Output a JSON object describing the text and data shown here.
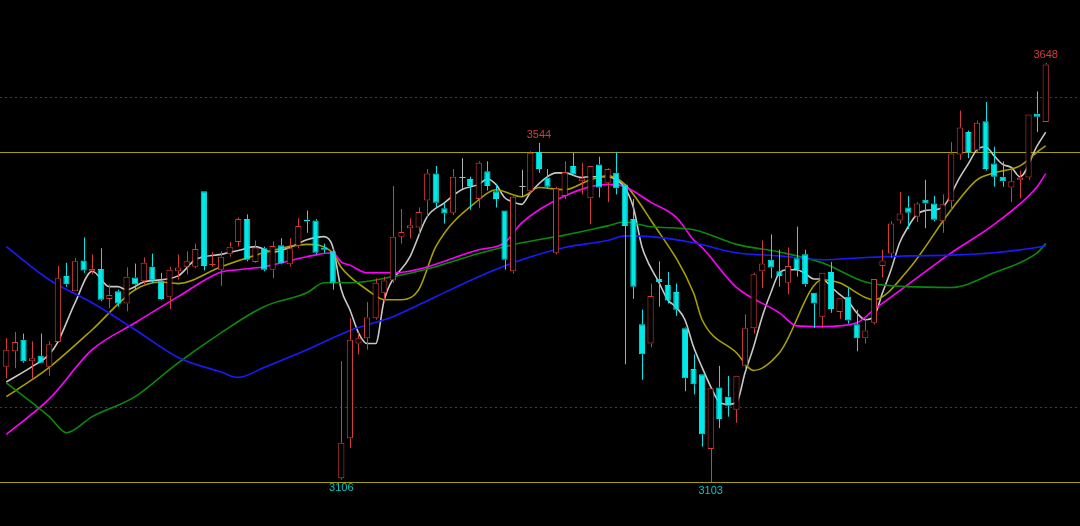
{
  "chart_data": {
    "type": "candlestick",
    "tick_labels": false,
    "grid": false,
    "legend": false,
    "categories": [
      null,
      null,
      null,
      null,
      null,
      null,
      null,
      null,
      null,
      null,
      null,
      null,
      null,
      null,
      null,
      null,
      null,
      null,
      null,
      null,
      null,
      null,
      null,
      null,
      null,
      null,
      null,
      null,
      null,
      null,
      null,
      null,
      null,
      null,
      null,
      null,
      null,
      null,
      null,
      null,
      null,
      null,
      null,
      null,
      null,
      null,
      null,
      null,
      null,
      null,
      null,
      null,
      null,
      null,
      null,
      null,
      null,
      null,
      null,
      null,
      null,
      null,
      null,
      null,
      null,
      null,
      null,
      null,
      null,
      null,
      null,
      null,
      null,
      null,
      null,
      null,
      null,
      null,
      null,
      null,
      null,
      null,
      null,
      null,
      null,
      null,
      null,
      null,
      null,
      null,
      null,
      null,
      null,
      null,
      null,
      null,
      null,
      null,
      null,
      null,
      null,
      null,
      null,
      null,
      null,
      null,
      null,
      null,
      null,
      null,
      null,
      null,
      null,
      null,
      null,
      null,
      null,
      null,
      null,
      null,
      null,
      null
    ],
    "ohlc": [
      [
        3253,
        3290,
        3238,
        3275
      ],
      [
        3273,
        3298,
        3251,
        3285
      ],
      [
        3288,
        3296,
        3258,
        3260
      ],
      [
        3260,
        3286,
        3236,
        3264
      ],
      [
        3267,
        3296,
        3258,
        3258
      ],
      [
        3253,
        3286,
        3241,
        3282
      ],
      [
        3285,
        3384,
        3284,
        3368
      ],
      [
        3371,
        3388,
        3357,
        3360
      ],
      [
        3351,
        3394,
        3351,
        3390
      ],
      [
        3391,
        3421,
        3375,
        3378
      ],
      [
        3377,
        3399,
        3373,
        3380
      ],
      [
        3380,
        3407,
        3338,
        3340
      ],
      [
        3341,
        3360,
        3329,
        3346
      ],
      [
        3351,
        3353,
        3331,
        3335
      ],
      [
        3335,
        3382,
        3325,
        3370
      ],
      [
        3369,
        3387,
        3353,
        3360
      ],
      [
        3364,
        3395,
        3360,
        3388
      ],
      [
        3383,
        3400,
        3362,
        3365
      ],
      [
        3364,
        3375,
        3340,
        3341
      ],
      [
        3344,
        3383,
        3328,
        3379
      ],
      [
        3377,
        3399,
        3366,
        3382
      ],
      [
        3383,
        3403,
        3373,
        3390
      ],
      [
        3383,
        3413,
        3381,
        3406
      ],
      [
        3481,
        3481,
        3378,
        3384
      ],
      [
        3386,
        3402,
        3383,
        3386
      ],
      [
        3379,
        3403,
        3358,
        3396
      ],
      [
        3399,
        3415,
        3396,
        3409
      ],
      [
        3415,
        3447,
        3409,
        3445
      ],
      [
        3445,
        3451,
        3390,
        3392
      ],
      [
        3389,
        3417,
        3388,
        3408
      ],
      [
        3407,
        3409,
        3377,
        3379
      ],
      [
        3379,
        3416,
        3368,
        3410
      ],
      [
        3411,
        3420,
        3386,
        3387
      ],
      [
        3386,
        3420,
        3383,
        3407
      ],
      [
        3410,
        3446,
        3407,
        3436
      ],
      [
        3444,
        3456,
        3427,
        3442
      ],
      [
        3443,
        3445,
        3399,
        3401
      ],
      [
        3408,
        3413,
        3401,
        3405
      ],
      [
        3403,
        3407,
        3353,
        3362
      ],
      [
        3108,
        3260,
        3106,
        3154
      ],
      [
        3160,
        3316,
        3147,
        3288
      ],
      [
        3283,
        3297,
        3269,
        3290
      ],
      [
        3290,
        3337,
        3275,
        3317
      ],
      [
        3316,
        3368,
        3314,
        3362
      ],
      [
        3349,
        3370,
        3338,
        3365
      ],
      [
        3365,
        3488,
        3362,
        3422
      ],
      [
        3422,
        3458,
        3413,
        3428
      ],
      [
        3433,
        3446,
        3420,
        3437
      ],
      [
        3434,
        3460,
        3425,
        3454
      ],
      [
        3469,
        3510,
        3448,
        3504
      ],
      [
        3504,
        3514,
        3460,
        3466
      ],
      [
        3459,
        3466,
        3439,
        3452
      ],
      [
        3453,
        3510,
        3450,
        3500
      ],
      [
        3499,
        3524,
        3483,
        3499
      ],
      [
        3497,
        3500,
        3457,
        3488
      ],
      [
        3471,
        3520,
        3459,
        3518
      ],
      [
        3507,
        3520,
        3482,
        3488
      ],
      [
        3481,
        3490,
        3460,
        3471
      ],
      [
        3456,
        3456,
        3379,
        3392
      ],
      [
        3377,
        3477,
        3374,
        3474
      ],
      [
        3488,
        3509,
        3474,
        3488
      ],
      [
        3481,
        3533,
        3479,
        3531
      ],
      [
        3532,
        3544,
        3505,
        3510
      ],
      [
        3499,
        3510,
        3485,
        3487
      ],
      [
        3401,
        3487,
        3399,
        3485
      ],
      [
        3475,
        3520,
        3471,
        3506
      ],
      [
        3514,
        3531,
        3501,
        3503
      ],
      [
        3494,
        3518,
        3477,
        3498
      ],
      [
        3472,
        3514,
        3438,
        3514
      ],
      [
        3516,
        3526,
        3473,
        3486
      ],
      [
        3492,
        3511,
        3467,
        3510
      ],
      [
        3505,
        3532,
        3477,
        3485
      ],
      [
        3490,
        3490,
        3256,
        3436
      ],
      [
        3445,
        3471,
        3341,
        3357
      ],
      [
        3308,
        3327,
        3236,
        3269
      ],
      [
        3283,
        3361,
        3278,
        3345
      ],
      [
        3367,
        3390,
        3331,
        3363
      ],
      [
        3359,
        3376,
        3335,
        3339
      ],
      [
        3350,
        3361,
        3319,
        3327
      ],
      [
        3303,
        3304,
        3221,
        3238
      ],
      [
        3250,
        3269,
        3217,
        3230
      ],
      [
        3243,
        3243,
        3149,
        3165
      ],
      [
        3146,
        3225,
        3103,
        3225
      ],
      [
        3226,
        3254,
        3173,
        3185
      ],
      [
        3214,
        3241,
        3188,
        3202
      ],
      [
        3197,
        3241,
        3180,
        3241
      ],
      [
        3254,
        3321,
        3249,
        3303
      ],
      [
        3303,
        3375,
        3296,
        3373
      ],
      [
        3377,
        3417,
        3355,
        3387
      ],
      [
        3392,
        3425,
        3368,
        3382
      ],
      [
        3377,
        3405,
        3357,
        3371
      ],
      [
        3362,
        3408,
        3347,
        3384
      ],
      [
        3394,
        3435,
        3370,
        3380
      ],
      [
        3399,
        3405,
        3357,
        3360
      ],
      [
        3349,
        3349,
        3303,
        3335
      ],
      [
        3318,
        3375,
        3303,
        3375
      ],
      [
        3376,
        3389,
        3323,
        3328
      ],
      [
        3324,
        3342,
        3315,
        3342
      ],
      [
        3344,
        3355,
        3309,
        3313
      ],
      [
        3308,
        3327,
        3273,
        3290
      ],
      [
        3290,
        3316,
        3283,
        3300
      ],
      [
        3310,
        3367,
        3308,
        3367
      ],
      [
        3384,
        3405,
        3369,
        3391
      ],
      [
        3400,
        3442,
        3394,
        3439
      ],
      [
        3443,
        3480,
        3439,
        3452
      ],
      [
        3460,
        3475,
        3432,
        3453
      ],
      [
        3448,
        3467,
        3441,
        3465
      ],
      [
        3470,
        3496,
        3433,
        3465
      ],
      [
        3465,
        3475,
        3442,
        3444
      ],
      [
        3442,
        3477,
        3427,
        3464
      ],
      [
        3468,
        3545,
        3456,
        3530
      ],
      [
        3529,
        3586,
        3522,
        3564
      ],
      [
        3558,
        3560,
        3524,
        3532
      ],
      [
        3534,
        3573,
        3532,
        3570
      ],
      [
        3572,
        3597,
        3508,
        3510
      ],
      [
        3517,
        3539,
        3487,
        3500
      ],
      [
        3500,
        3520,
        3487,
        3494
      ],
      [
        3486,
        3509,
        3467,
        3494
      ],
      [
        3496,
        3508,
        3472,
        3499
      ],
      [
        3499,
        3581,
        3496,
        3581
      ],
      [
        3582,
        3611,
        3558,
        3578
      ],
      [
        3571,
        3648,
        3571,
        3646
      ]
    ],
    "colors": [
      "#d23c3c",
      "#d23c3c",
      "#00e8e8",
      "#d23c3c",
      "#00e8e8",
      "#d23c3c",
      "#d23c3c",
      "#00e8e8",
      "#d23c3c",
      "#00e8e8",
      "#d23c3c",
      "#00e8e8",
      "#d23c3c",
      "#00e8e8",
      "#d23c3c",
      "#00e8e8",
      "#d23c3c",
      "#00e8e8",
      "#00e8e8",
      "#d23c3c",
      "#d23c3c",
      "#d23c3c",
      "#d23c3c",
      "#00e8e8",
      "#d23c3c",
      "#d23c3c",
      "#d23c3c",
      "#d23c3c",
      "#00e8e8",
      "#d23c3c",
      "#00e8e8",
      "#d23c3c",
      "#00e8e8",
      "#d23c3c",
      "#d23c3c",
      "#00e8e8",
      "#00e8e8",
      "#00e8e8",
      "#00e8e8",
      "#d23c3c",
      "#d23c3c",
      "#d23c3c",
      "#d23c3c",
      "#d23c3c",
      "#d23c3c",
      "#d23c3c",
      "#d23c3c",
      "#d23c3c",
      "#d23c3c",
      "#d23c3c",
      "#00e8e8",
      "#00e8e8",
      "#d23c3c",
      "#b4b4b4",
      "#00e8e8",
      "#d23c3c",
      "#00e8e8",
      "#00e8e8",
      "#00e8e8",
      "#d23c3c",
      "#b4b4b4",
      "#d23c3c",
      "#00e8e8",
      "#00e8e8",
      "#d23c3c",
      "#d23c3c",
      "#00e8e8",
      "#d23c3c",
      "#d23c3c",
      "#00e8e8",
      "#d23c3c",
      "#00e8e8",
      "#00e8e8",
      "#00e8e8",
      "#00e8e8",
      "#d23c3c",
      "#00e8e8",
      "#00e8e8",
      "#00e8e8",
      "#00e8e8",
      "#00e8e8",
      "#00e8e8",
      "#d23c3c",
      "#00e8e8",
      "#00e8e8",
      "#d23c3c",
      "#d23c3c",
      "#d23c3c",
      "#d23c3c",
      "#00e8e8",
      "#00e8e8",
      "#d23c3c",
      "#00e8e8",
      "#00e8e8",
      "#00e8e8",
      "#d23c3c",
      "#00e8e8",
      "#d23c3c",
      "#00e8e8",
      "#00e8e8",
      "#d23c3c",
      "#d23c3c",
      "#d23c3c",
      "#d23c3c",
      "#d23c3c",
      "#00e8e8",
      "#d23c3c",
      "#00e8e8",
      "#00e8e8",
      "#d23c3c",
      "#d23c3c",
      "#d23c3c",
      "#00e8e8",
      "#d23c3c",
      "#00e8e8",
      "#00e8e8",
      "#00e8e8",
      "#d23c3c",
      "#d23c3c",
      "#d23c3c",
      "#00e8e8",
      "#d23c3c"
    ],
    "series": [
      {
        "type": "line",
        "color": "#1a1aff",
        "values": [
          3409,
          null,
          null,
          null,
          null,
          3366,
          null,
          null,
          null,
          null,
          3336,
          null,
          null,
          null,
          null,
          3301,
          null,
          null,
          null,
          null,
          3265,
          null,
          null,
          null,
          null,
          3246,
          null,
          3239,
          null,
          null,
          3252,
          null,
          null,
          null,
          null,
          3275,
          null,
          null,
          null,
          null,
          3300,
          null,
          null,
          null,
          null,
          3318,
          null,
          null,
          null,
          null,
          3344,
          null,
          null,
          null,
          null,
          3370,
          null,
          null,
          null,
          null,
          3392,
          null,
          null,
          null,
          null,
          3408,
          null,
          null,
          null,
          null,
          3417,
          null,
          3423,
          null,
          null,
          3422,
          null,
          null,
          null,
          null,
          3414,
          null,
          null,
          null,
          null,
          3401,
          null,
          null,
          null,
          null,
          3397,
          null,
          null,
          null,
          null,
          3392,
          null,
          null,
          null,
          null,
          3395,
          null,
          null,
          null,
          null,
          3397,
          null,
          null,
          null,
          null,
          3398,
          null,
          null,
          null,
          null,
          3401,
          null,
          null,
          null,
          null,
          3408,
          3410
        ]
      },
      {
        "type": "line",
        "color": "#0a8a0a",
        "values": [
          3232,
          null,
          null,
          null,
          null,
          3188,
          null,
          3167,
          null,
          null,
          3188,
          null,
          null,
          null,
          null,
          3214,
          null,
          null,
          null,
          null,
          3258,
          null,
          null,
          null,
          null,
          3297,
          null,
          null,
          null,
          null,
          3331,
          null,
          null,
          null,
          null,
          3349,
          null,
          3362,
          null,
          null,
          3362,
          null,
          null,
          null,
          null,
          3370,
          null,
          null,
          null,
          null,
          3383,
          null,
          null,
          null,
          null,
          3400,
          null,
          null,
          null,
          null,
          3414,
          null,
          null,
          null,
          null,
          3424,
          null,
          null,
          null,
          null,
          3436,
          null,
          3441,
          null,
          null,
          3435,
          null,
          null,
          null,
          null,
          3431,
          null,
          null,
          null,
          null,
          3412,
          null,
          null,
          null,
          null,
          3402,
          null,
          null,
          null,
          null,
          3388,
          null,
          null,
          null,
          null,
          3363,
          null,
          null,
          null,
          null,
          3357,
          null,
          null,
          null,
          null,
          3356,
          null,
          null,
          null,
          null,
          3375,
          null,
          null,
          null,
          null,
          3401,
          3413
        ]
      },
      {
        "type": "line",
        "color": "#ff00ff",
        "values": [
          3165,
          null,
          null,
          null,
          null,
          3211,
          null,
          null,
          null,
          null,
          3275,
          null,
          null,
          null,
          null,
          3310,
          null,
          null,
          null,
          null,
          3344,
          null,
          null,
          null,
          null,
          3376,
          null,
          3379,
          null,
          null,
          3383,
          null,
          null,
          null,
          null,
          3396,
          null,
          null,
          3401,
          3389,
          3385,
          null,
          3375,
          null,
          null,
          3375,
          null,
          null,
          null,
          null,
          null,
          null,
          null,
          null,
          null,
          3405,
          null,
          null,
          3414,
          null,
          3440,
          null,
          null,
          null,
          null,
          3475,
          null,
          null,
          null,
          null,
          3490,
          null,
          3487,
          null,
          null,
          3467,
          null,
          null,
          3447,
          null,
          3418,
          3408,
          null,
          null,
          null,
          3356,
          null,
          null,
          null,
          null,
          3323,
          null,
          3306,
          null,
          null,
          3305,
          null,
          null,
          null,
          3310,
          null,
          3327,
          null,
          null,
          null,
          3360,
          null,
          null,
          null,
          null,
          3401,
          null,
          null,
          null,
          null,
          3438,
          null,
          null,
          null,
          null,
          3487,
          3504
        ]
      },
      {
        "type": "line",
        "color": "#a8a000",
        "values": [
          3214,
          null,
          null,
          3236,
          null,
          3252,
          null,
          null,
          null,
          null,
          3301,
          null,
          null,
          null,
          null,
          3353,
          null,
          null,
          3363,
          null,
          3361,
          null,
          null,
          null,
          null,
          3383,
          null,
          null,
          null,
          null,
          3401,
          null,
          null,
          null,
          null,
          3412,
          null,
          null,
          3401,
          3382,
          3370,
          null,
          3353,
          null,
          3340,
          null,
          3340,
          null,
          3353,
          null,
          3409,
          null,
          null,
          null,
          null,
          3470,
          null,
          3483,
          null,
          null,
          3474,
          null,
          3486,
          null,
          null,
          3483,
          null,
          null,
          3496,
          null,
          3501,
          null,
          3490,
          null,
          null,
          3444,
          null,
          null,
          null,
          null,
          3349,
          3314,
          null,
          null,
          null,
          3271,
          null,
          3248,
          null,
          null,
          3271,
          null,
          null,
          null,
          null,
          3366,
          null,
          3362,
          null,
          null,
          3343,
          3340,
          null,
          null,
          null,
          3379,
          null,
          null,
          null,
          null,
          3457,
          null,
          null,
          3496,
          null,
          3505,
          null,
          null,
          3514,
          null,
          3532,
          3540
        ]
      },
      {
        "type": "line",
        "color": "#c8c8c8",
        "values": [
          3233,
          null,
          null,
          3253,
          null,
          3269,
          3285,
          null,
          3336,
          null,
          3377,
          null,
          3357,
          3357,
          3353,
          null,
          3363,
          null,
          null,
          null,
          3371,
          null,
          3392,
          null,
          null,
          3399,
          null,
          3404,
          null,
          3409,
          null,
          3402,
          null,
          3408,
          null,
          3418,
          null,
          3422,
          3409,
          3353,
          3327,
          3297,
          3283,
          3283,
          3340,
          null,
          null,
          3396,
          null,
          3448,
          null,
          3466,
          null,
          3483,
          null,
          3490,
          3497,
          3490,
          3473,
          3467,
          3464,
          3479,
          null,
          3500,
          3505,
          3505,
          null,
          3499,
          3500,
          null,
          3500,
          3496,
          3486,
          3460,
          3409,
          null,
          3362,
          3340,
          3330,
          3314,
          3279,
          3252,
          3227,
          3207,
          3204,
          3206,
          3245,
          3279,
          3318,
          3349,
          3375,
          3379,
          3379,
          3374,
          3367,
          3367,
          3357,
          3347,
          3338,
          3323,
          3314,
          3318,
          3349,
          3379,
          3414,
          3435,
          3451,
          3456,
          3457,
          3460,
          null,
          3499,
          3517,
          3535,
          3539,
          3527,
          3516,
          3512,
          3500,
          null,
          3540,
          3558
        ]
      }
    ],
    "ref_lines": [
      {
        "axis": "y",
        "value": 3532,
        "color": "#a8a000",
        "line_style": "solid"
      },
      {
        "axis": "y",
        "value": 3103,
        "color": "#a8a000",
        "line_style": "solid"
      },
      {
        "axis": "y",
        "value": 3603,
        "color": "#8a1e1e",
        "line_style": "dotted"
      },
      {
        "axis": "y",
        "value": 3200,
        "color": "#8a1e1e",
        "line_style": "dotted"
      }
    ],
    "annotations": [
      {
        "text": "3648",
        "y": 3648
      },
      {
        "text": "3544",
        "y": 3544
      },
      {
        "text": "3106",
        "y": 3106
      },
      {
        "text": "3103",
        "y": 3103
      }
    ]
  }
}
